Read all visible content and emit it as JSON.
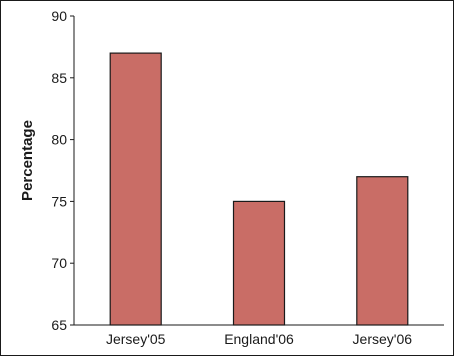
{
  "chart_data": {
    "type": "bar",
    "title": "",
    "xlabel": "",
    "ylabel": "Percentage",
    "categories": [
      "Jersey'05",
      "England'06",
      "Jersey'06"
    ],
    "values": [
      87,
      75,
      77
    ],
    "ylim": [
      65,
      90
    ],
    "yticks": [
      65,
      70,
      75,
      80,
      85,
      90
    ],
    "grid": false,
    "legend": "none",
    "bar_color": "#c96d66",
    "bar_edge_color": "#1a1a1a",
    "axis_color": "#1a1a1a"
  }
}
